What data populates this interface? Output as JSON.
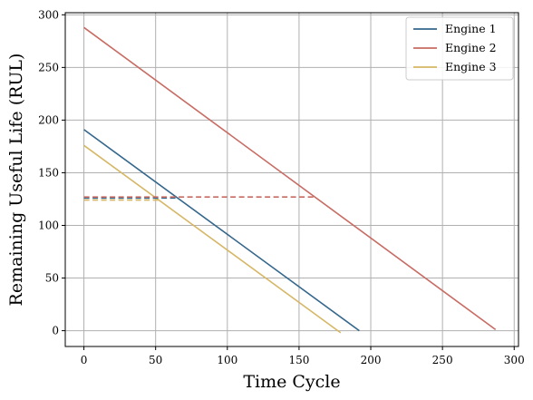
{
  "chart_data": {
    "type": "line",
    "xlabel": "Time Cycle",
    "ylabel": "Remaining Useful Life (RUL)",
    "xlim": [
      -13,
      303
    ],
    "ylim": [
      -15,
      302
    ],
    "xticks": [
      0,
      50,
      100,
      150,
      200,
      250,
      300
    ],
    "yticks": [
      0,
      50,
      100,
      150,
      200,
      250,
      300
    ],
    "grid": true,
    "legend_position": "top-right",
    "series": [
      {
        "name": "Engine 1",
        "color": "#34678c",
        "style": "solid",
        "x": [
          0,
          192
        ],
        "y": [
          191,
          0
        ]
      },
      {
        "name": "Engine 2",
        "color": "#c86b63",
        "style": "solid",
        "x": [
          0,
          287
        ],
        "y": [
          288,
          1
        ]
      },
      {
        "name": "Engine 3",
        "color": "#d6b766",
        "style": "solid",
        "x": [
          0,
          179
        ],
        "y": [
          176,
          -2
        ]
      },
      {
        "name": "",
        "color": "#34678c",
        "style": "dashed",
        "x": [
          0,
          65
        ],
        "y": [
          126,
          126
        ]
      },
      {
        "name": "",
        "color": "#c86b63",
        "style": "dashed",
        "x": [
          0,
          162
        ],
        "y": [
          127,
          127
        ]
      },
      {
        "name": "",
        "color": "#d6b766",
        "style": "dashed",
        "x": [
          0,
          52
        ],
        "y": [
          124,
          124
        ]
      }
    ]
  }
}
